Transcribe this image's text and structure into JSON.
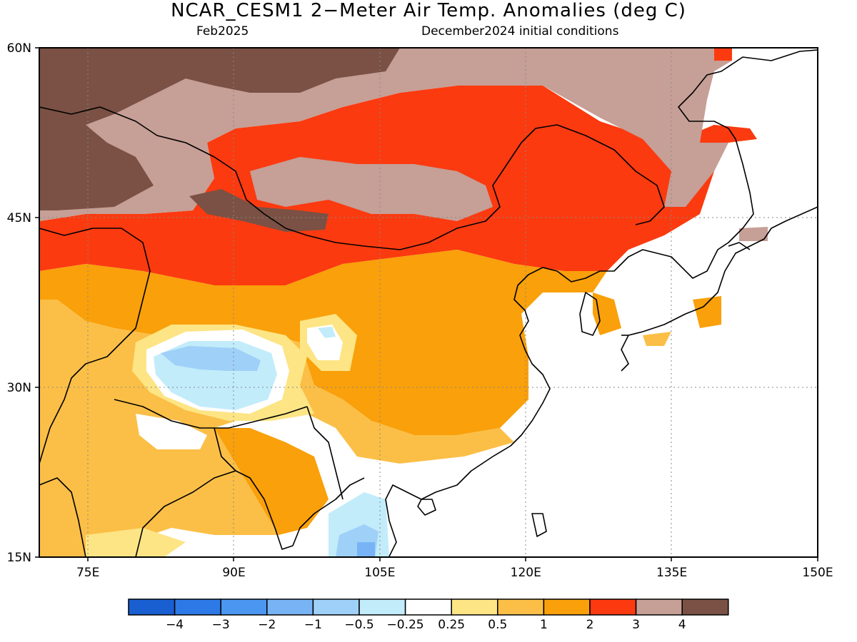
{
  "title": "NCAR_CESM1 2−Meter Air Temp. Anomalies (deg C)",
  "subtitle_left": "Feb2025",
  "subtitle_right": "December2024 initial conditions",
  "map": {
    "lon_range": [
      70,
      150
    ],
    "lat_range": [
      15,
      60
    ],
    "lon_ticks": [
      {
        "value": 75,
        "label": "75E"
      },
      {
        "value": 90,
        "label": "90E"
      },
      {
        "value": 105,
        "label": "105E"
      },
      {
        "value": 120,
        "label": "120E"
      },
      {
        "value": 135,
        "label": "135E"
      },
      {
        "value": 150,
        "label": "150E"
      }
    ],
    "lat_ticks": [
      {
        "value": 60,
        "label": "60N"
      },
      {
        "value": 45,
        "label": "45N"
      },
      {
        "value": 30,
        "label": "30N"
      },
      {
        "value": 15,
        "label": "15N"
      }
    ],
    "grid": "dotted"
  },
  "colorbar": {
    "colors": [
      "#1a5fd1",
      "#2d79e8",
      "#4a96f0",
      "#78b4f5",
      "#9fd0f8",
      "#c2ecfa",
      "#ffffff",
      "#fde585",
      "#fbbf47",
      "#f9a00a",
      "#fb3a10",
      "#c69f96",
      "#7a5144"
    ],
    "labels": [
      "−4",
      "−3",
      "−2",
      "−1",
      "−0.5",
      "−0.25",
      "0.25",
      "0.5",
      "1",
      "2",
      "3",
      "4"
    ]
  }
}
